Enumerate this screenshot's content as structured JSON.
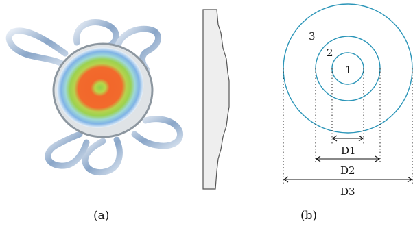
{
  "panel_a": {
    "caption": "(a)"
  },
  "panel_b": {
    "caption": "(b)",
    "zones": [
      {
        "label": "1"
      },
      {
        "label": "2"
      },
      {
        "label": "3"
      }
    ],
    "dimensions": [
      {
        "label": "D1"
      },
      {
        "label": "D2"
      },
      {
        "label": "D3"
      }
    ]
  },
  "colors": {
    "circle_stroke": "#2b95b8",
    "lens_center": "#8fd34a",
    "lens_orange": "#f2672b",
    "lens_green": "#9bd24f",
    "lens_blue": "#7fb3e6",
    "haptic": "#9db6d4"
  }
}
